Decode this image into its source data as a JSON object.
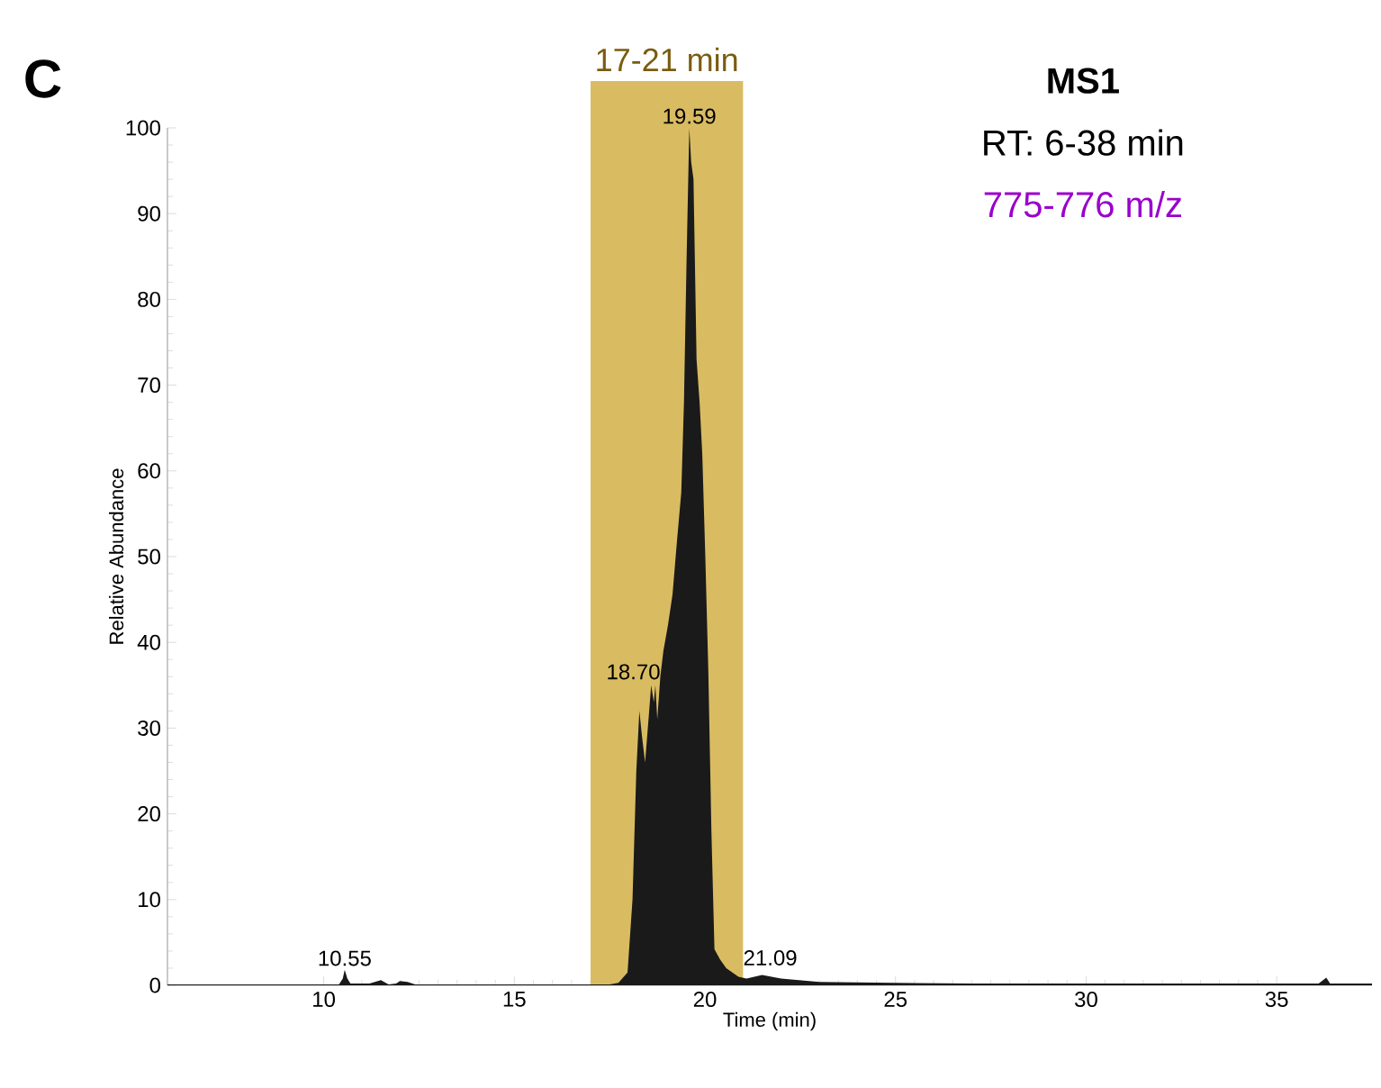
{
  "chart_data": {
    "type": "area",
    "xlabel": "Time (min)",
    "ylabel": "Relative Abundance",
    "xlim": [
      5.9,
      37.5
    ],
    "ylim": [
      0,
      100
    ],
    "xticks": [
      10,
      15,
      20,
      25,
      30,
      35
    ],
    "yticks": [
      0,
      10,
      20,
      30,
      40,
      50,
      60,
      70,
      80,
      90,
      100
    ],
    "grid": false,
    "series": [
      {
        "color": "#1a1a1a",
        "x": [
          5.9,
          8,
          10.4,
          10.5,
          10.55,
          10.62,
          10.7,
          11.2,
          11.5,
          11.7,
          11.9,
          12.0,
          12.2,
          12.4,
          14,
          16,
          17.5,
          17.73,
          17.97,
          18.1,
          18.2,
          18.28,
          18.35,
          18.43,
          18.52,
          18.59,
          18.66,
          18.7,
          18.75,
          18.83,
          18.91,
          19.03,
          19.15,
          19.27,
          19.38,
          19.45,
          19.52,
          19.59,
          19.64,
          19.7,
          19.78,
          19.86,
          19.93,
          20.01,
          20.09,
          20.17,
          20.25,
          20.4,
          20.56,
          20.88,
          21.09,
          21.5,
          22,
          23,
          25,
          27,
          30,
          33,
          36.1,
          36.3,
          36.4,
          37.5
        ],
        "values": [
          0.1,
          0.1,
          0.1,
          0.8,
          1.8,
          0.8,
          0.2,
          0.2,
          0.6,
          0.1,
          0.2,
          0.5,
          0.4,
          0.1,
          0.1,
          0.1,
          0.1,
          0.3,
          1.5,
          10,
          25,
          32,
          29,
          26,
          31,
          35,
          33,
          35,
          31,
          36,
          39,
          42,
          45.6,
          52,
          57.5,
          68,
          85,
          100,
          96,
          94,
          73,
          68,
          62,
          50,
          36.5,
          18,
          4.2,
          3,
          2,
          1,
          0.8,
          1.2,
          0.8,
          0.4,
          0.3,
          0.2,
          0.2,
          0.2,
          0.2,
          0.9,
          0.2,
          0.2
        ]
      }
    ],
    "bands": [
      {
        "axis": "x",
        "from": 17,
        "to": 21,
        "label": "17-21 min",
        "color": "#d9bc62"
      }
    ],
    "annotations": [
      "C",
      "MS1",
      "RT: 6-38 min",
      "775-776 m/z",
      {
        "text": "10.55",
        "x": 10.55,
        "y": 1.8
      },
      {
        "text": "18.70",
        "x": 18.7,
        "y": 35
      },
      {
        "text": "19.59",
        "x": 19.59,
        "y": 100
      },
      {
        "text": "21.09",
        "x": 21.09,
        "y": 0.8
      }
    ]
  }
}
